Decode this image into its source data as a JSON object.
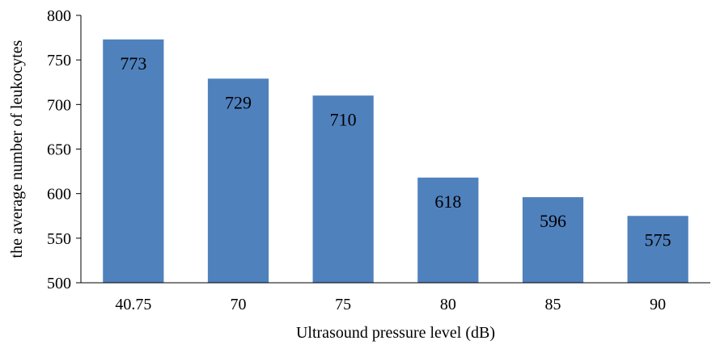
{
  "chart_data": {
    "type": "bar",
    "categories": [
      "40.75",
      "70",
      "75",
      "80",
      "85",
      "90"
    ],
    "values": [
      773,
      729,
      710,
      618,
      596,
      575
    ],
    "data_labels": [
      "773",
      "729",
      "710",
      "618",
      "596",
      "575"
    ],
    "xlabel": "Ultrasound pressure level (dB)",
    "ylabel": "the average number of leukocytes",
    "ylim": [
      500,
      800
    ],
    "yticks": [
      500,
      550,
      600,
      650,
      700,
      750,
      800
    ],
    "ytick_labels": [
      "500",
      "550",
      "600",
      "650",
      "700",
      "750",
      "800"
    ],
    "grid": false,
    "legend": "none",
    "bar_color": "#4f81bd"
  }
}
